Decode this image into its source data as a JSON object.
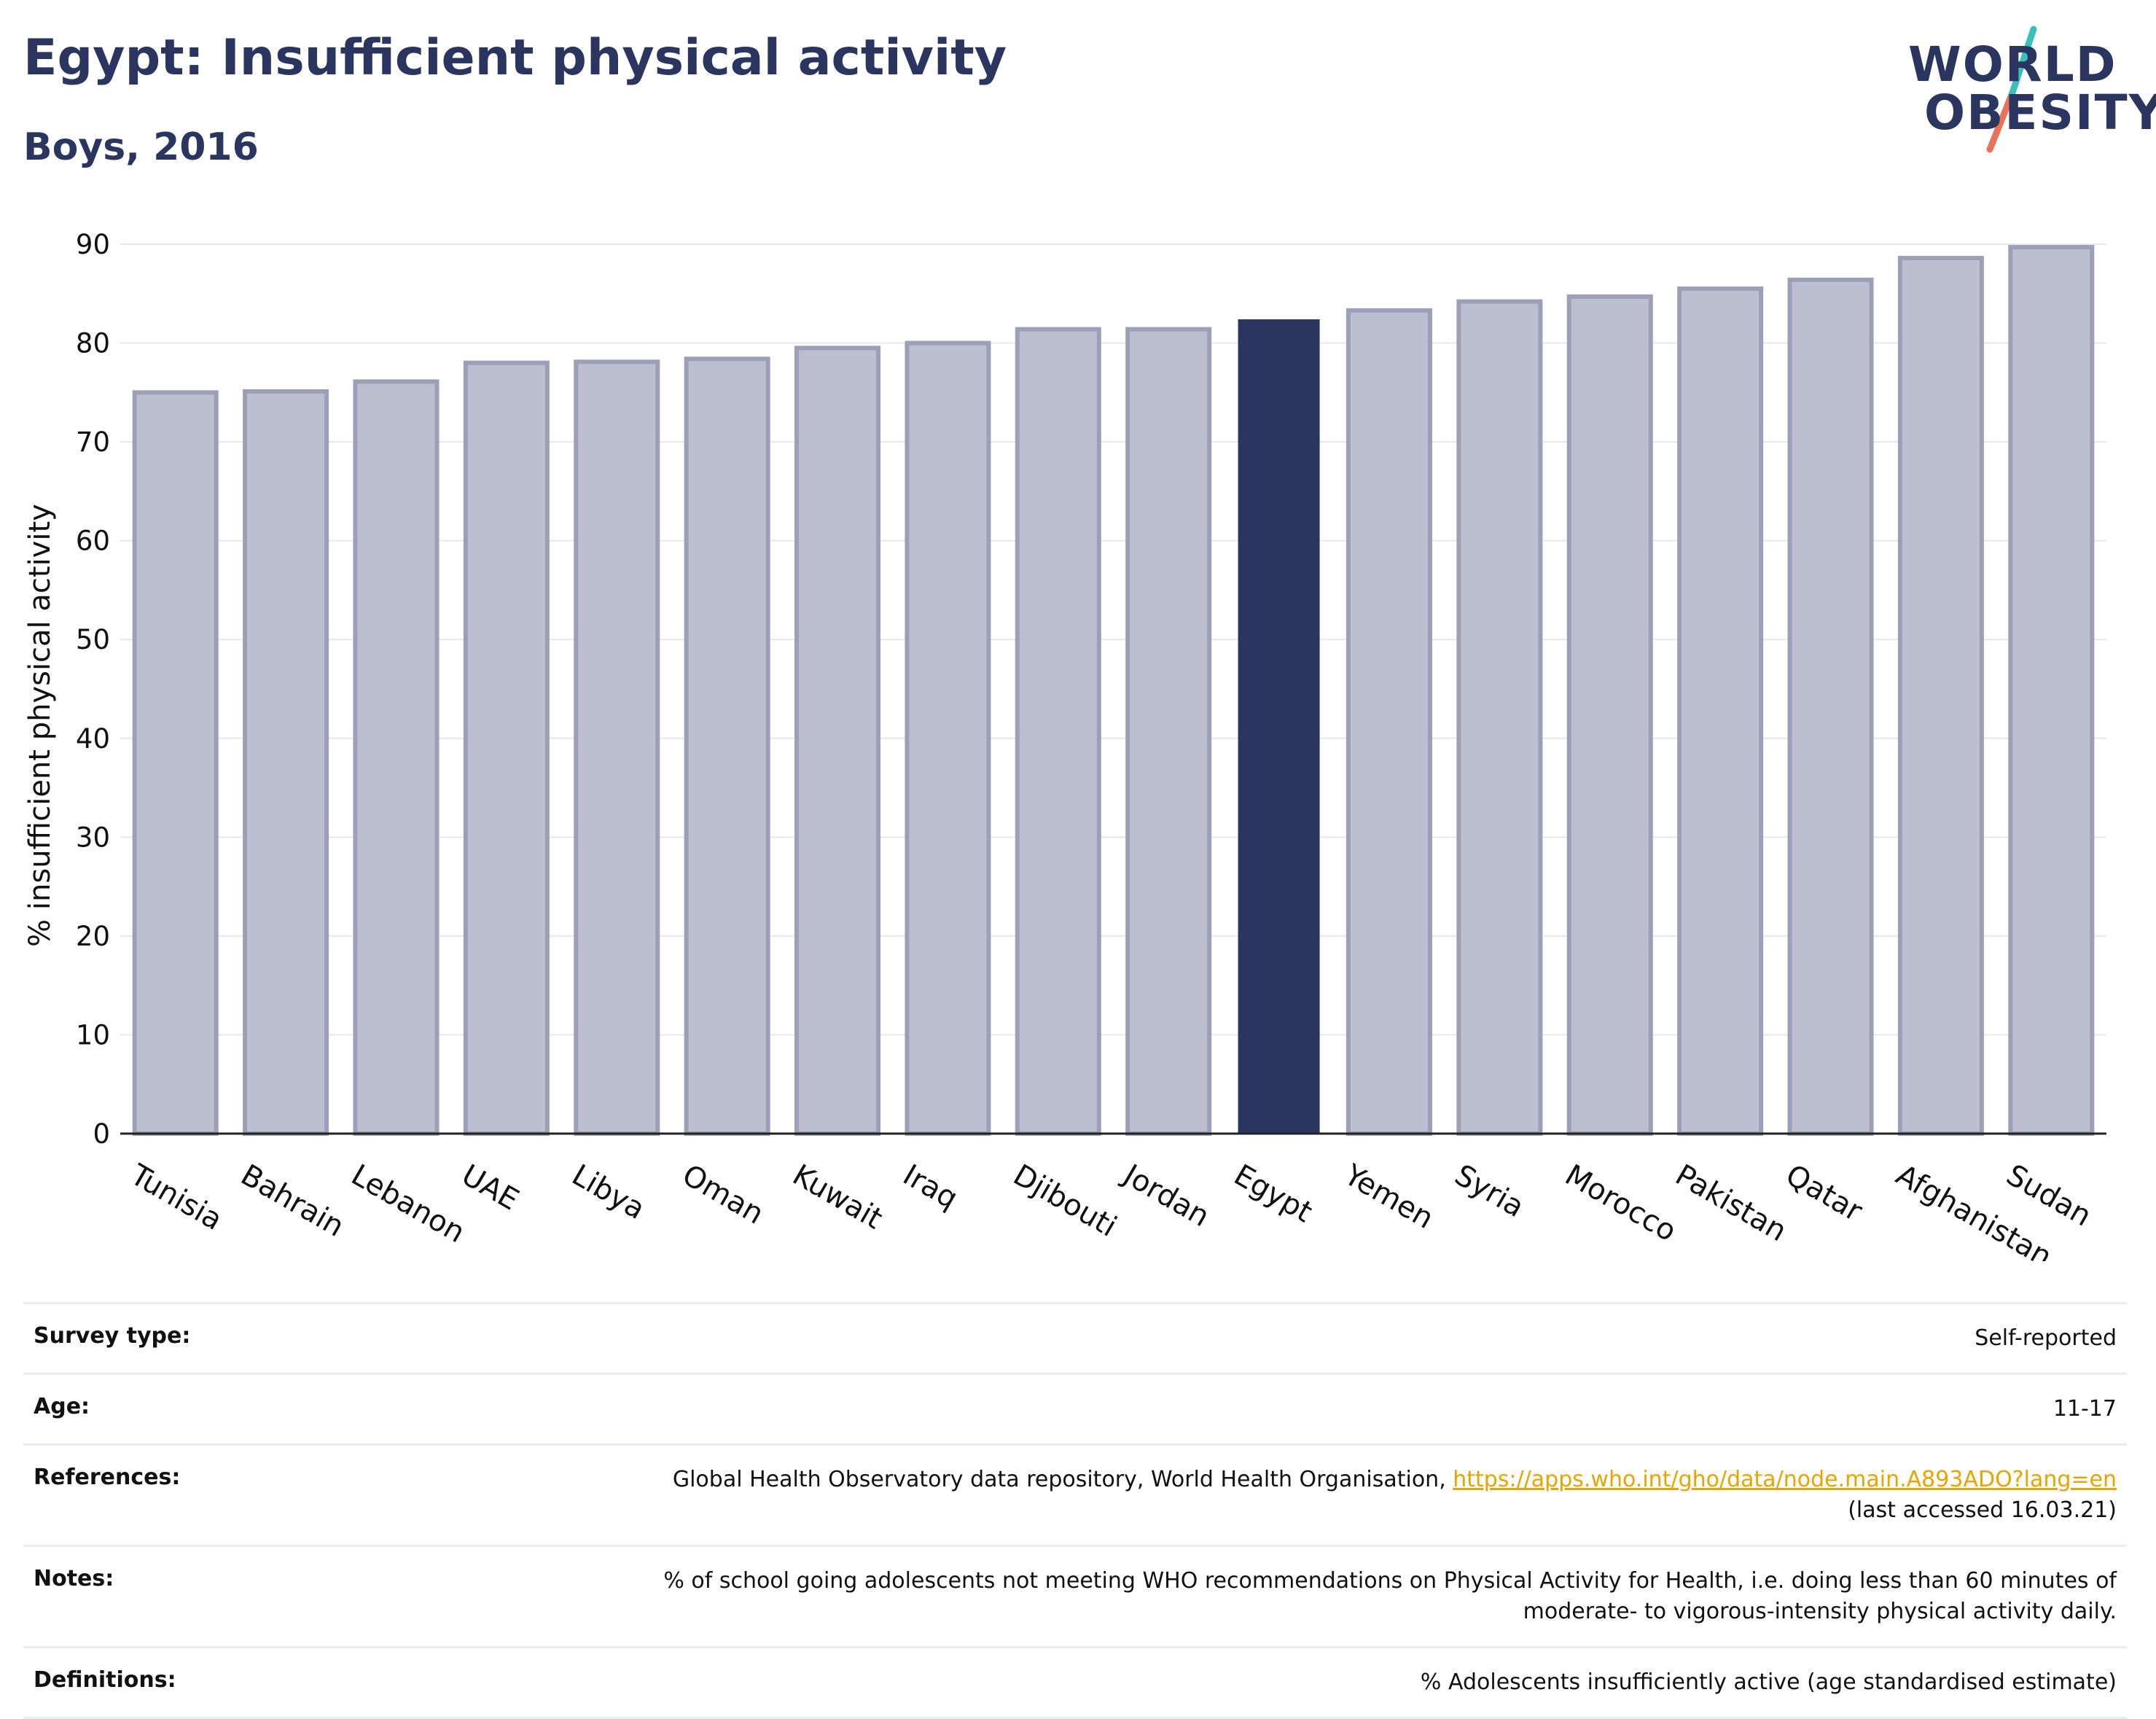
{
  "header": {
    "title": "Egypt: Insufficient physical activity",
    "subtitle": "Boys, 2016"
  },
  "logo": {
    "line1": "WORLD",
    "line2": "OBESITY",
    "accent_colors": [
      "#3bbfb9",
      "#e8735a"
    ]
  },
  "colors": {
    "bar_default": "#bcbfcf",
    "bar_default_border": "#9ba0b8",
    "bar_highlight": "#2a3560",
    "text": "#2a3560",
    "grid": "#e6e8ef"
  },
  "chart_data": {
    "type": "bar",
    "title": "",
    "xlabel": "",
    "ylabel": "% insufficient physical activity",
    "ylim": [
      0,
      90
    ],
    "yticks": [
      0,
      10,
      20,
      30,
      40,
      50,
      60,
      70,
      80,
      90
    ],
    "grid": true,
    "highlight": "Egypt",
    "categories": [
      "Tunisia",
      "Bahrain",
      "Lebanon",
      "UAE",
      "Libya",
      "Oman",
      "Kuwait",
      "Iraq",
      "Djibouti",
      "Jordan",
      "Egypt",
      "Yemen",
      "Syria",
      "Morocco",
      "Pakistan",
      "Qatar",
      "Afghanistan",
      "Sudan"
    ],
    "values": [
      75.0,
      75.1,
      76.1,
      78.0,
      78.1,
      78.4,
      79.5,
      80.0,
      81.4,
      81.4,
      82.4,
      83.3,
      84.2,
      84.7,
      85.5,
      86.4,
      88.6,
      89.7
    ]
  },
  "info": {
    "survey_type_label": "Survey type:",
    "survey_type_value": "Self-reported",
    "age_label": "Age:",
    "age_value": "11-17",
    "references_label": "References:",
    "references_text": "Global Health Observatory data repository, World Health Organisation, ",
    "references_link": "https://apps.who.int/gho/data/node.main.A893ADO?lang=en",
    "references_accessed": "(last accessed 16.03.21)",
    "notes_label": "Notes:",
    "notes_line1": "% of school going adolescents not meeting WHO recommendations on Physical Activity for Health, i.e. doing less than 60 minutes of",
    "notes_line2": "moderate- to vigorous-intensity physical activity daily.",
    "definitions_label": "Definitions:",
    "definitions_value": "% Adolescents insufficiently active (age standardised estimate)"
  }
}
